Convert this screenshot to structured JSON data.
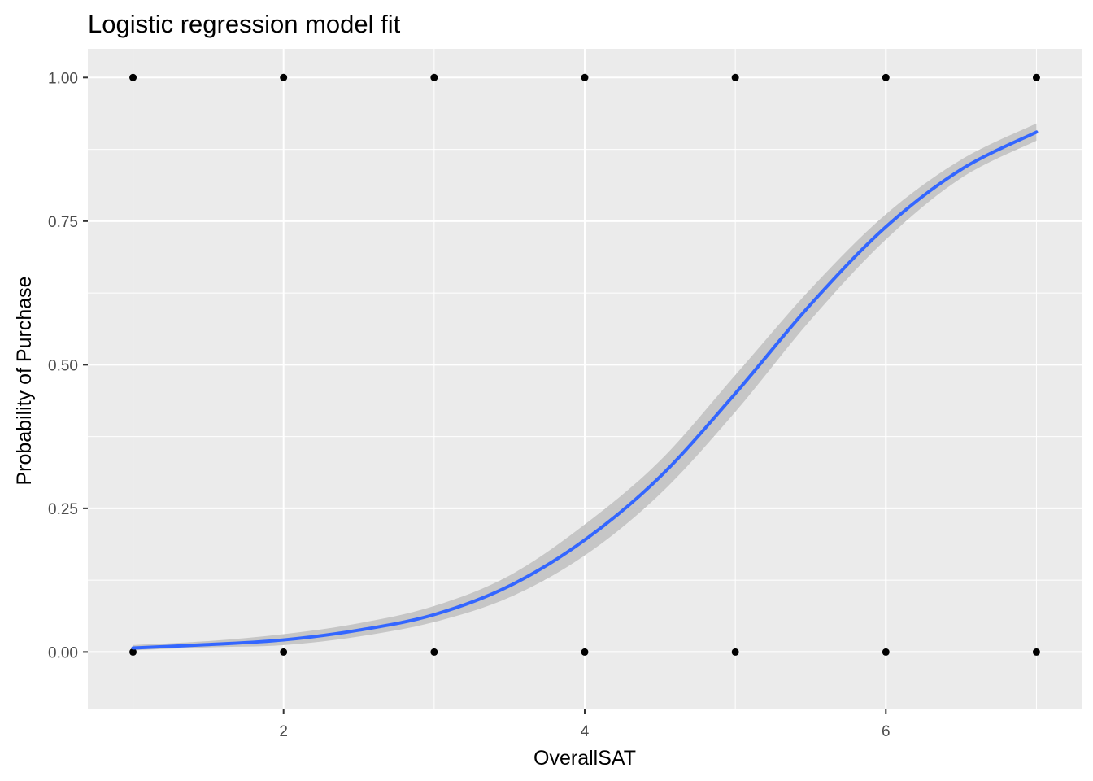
{
  "chart_data": {
    "type": "scatter",
    "title": "Logistic regression model fit",
    "xlabel": "OverallSAT",
    "ylabel": "Probability of Purchase",
    "xlim": [
      0.7,
      7.3
    ],
    "ylim": [
      -0.1,
      1.05
    ],
    "x_ticks": [
      2,
      4,
      6
    ],
    "x_tick_labels": [
      "2",
      "4",
      "6"
    ],
    "y_ticks": [
      0,
      0.25,
      0.5,
      0.75,
      1
    ],
    "y_tick_labels": [
      "0.00",
      "0.25",
      "0.50",
      "0.75",
      "1.00"
    ],
    "grid": true,
    "legend": "none",
    "colors": {
      "panel": "#ebebeb",
      "grid": "#ffffff",
      "points": "#000000",
      "fit_line": "#3366ff",
      "ribbon": "#c6c6c6"
    },
    "points": [
      {
        "x": 1,
        "y": 0
      },
      {
        "x": 2,
        "y": 0
      },
      {
        "x": 3,
        "y": 0
      },
      {
        "x": 4,
        "y": 0
      },
      {
        "x": 5,
        "y": 0
      },
      {
        "x": 6,
        "y": 0
      },
      {
        "x": 7,
        "y": 0
      },
      {
        "x": 1,
        "y": 1
      },
      {
        "x": 2,
        "y": 1
      },
      {
        "x": 3,
        "y": 1
      },
      {
        "x": 4,
        "y": 1
      },
      {
        "x": 5,
        "y": 1
      },
      {
        "x": 6,
        "y": 1
      },
      {
        "x": 7,
        "y": 1
      }
    ],
    "fit": {
      "x": [
        1,
        1.5,
        2,
        2.5,
        3,
        3.5,
        4,
        4.5,
        5,
        5.5,
        6,
        6.5,
        7
      ],
      "y": [
        0.007,
        0.013,
        0.021,
        0.038,
        0.065,
        0.115,
        0.195,
        0.305,
        0.45,
        0.605,
        0.74,
        0.84,
        0.905
      ],
      "lower": [
        0.003,
        0.008,
        0.012,
        0.027,
        0.052,
        0.095,
        0.168,
        0.275,
        0.418,
        0.578,
        0.718,
        0.825,
        0.89
      ],
      "upper": [
        0.012,
        0.019,
        0.031,
        0.05,
        0.08,
        0.133,
        0.222,
        0.333,
        0.482,
        0.632,
        0.762,
        0.857,
        0.92
      ]
    }
  }
}
